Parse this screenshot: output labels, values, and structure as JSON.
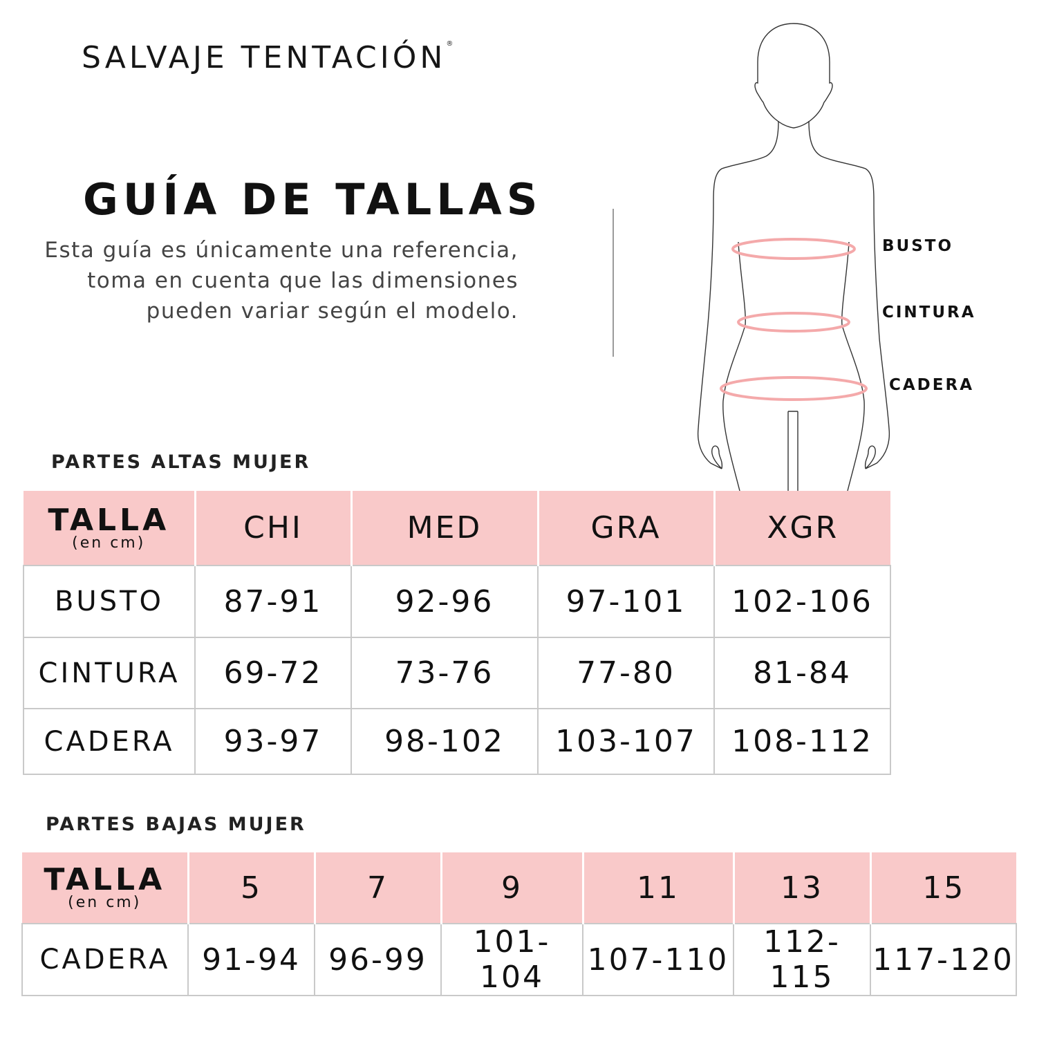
{
  "brand": {
    "name": "SALVAJE TENTACIÓN",
    "mark": "®"
  },
  "title": "GUÍA DE TALLAS",
  "description": "Esta guía es únicamente una referencia, toma en cuenta que las dimensiones pueden variar según el modelo.",
  "figure": {
    "labels": [
      "BUSTO",
      "CINTURA",
      "CADERA"
    ],
    "measure_color": "#f4a9aa"
  },
  "colors": {
    "header_bg": "#f9c9c9",
    "text": "#111111"
  },
  "upper": {
    "section_title": "PARTES ALTAS MUJER",
    "header_label": "TALLA",
    "header_unit": "(en cm)",
    "columns": [
      "CHI",
      "MED",
      "GRA",
      "XGR"
    ],
    "rows": [
      {
        "label": "BUSTO",
        "values": [
          "87-91",
          "92-96",
          "97-101",
          "102-106"
        ]
      },
      {
        "label": "CINTURA",
        "values": [
          "69-72",
          "73-76",
          "77-80",
          "81-84"
        ]
      },
      {
        "label": "CADERA",
        "values": [
          "93-97",
          "98-102",
          "103-107",
          "108-112"
        ]
      }
    ]
  },
  "lower": {
    "section_title": "PARTES BAJAS MUJER",
    "header_label": "TALLA",
    "header_unit": "(en cm)",
    "columns": [
      "5",
      "7",
      "9",
      "11",
      "13",
      "15"
    ],
    "rows": [
      {
        "label": "CADERA",
        "values": [
          "91-94",
          "96-99",
          "101-104",
          "107-110",
          "112-115",
          "117-120"
        ]
      }
    ]
  }
}
